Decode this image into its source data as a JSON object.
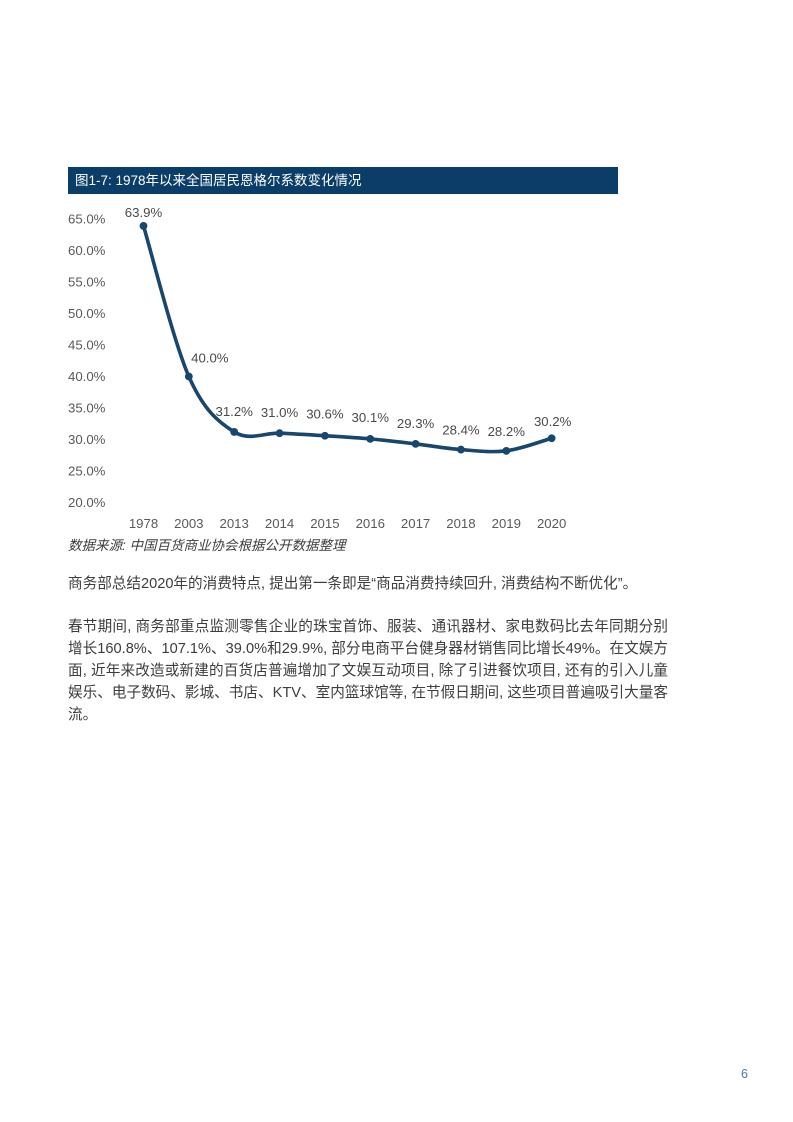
{
  "figure": {
    "title": "图1-7: 1978年以来全国居民恩格尔系数变化情况",
    "source": "数据来源: 中国百货商业协会根据公开数据整理"
  },
  "chart_data": {
    "type": "line",
    "title": "图1-7: 1978年以来全国居民恩格尔系数变化情况",
    "categories": [
      "1978",
      "2003",
      "2013",
      "2014",
      "2015",
      "2016",
      "2017",
      "2018",
      "2019",
      "2020"
    ],
    "values": [
      63.9,
      40.0,
      31.2,
      31.0,
      30.6,
      30.1,
      29.3,
      28.4,
      28.2,
      30.2
    ],
    "point_labels": [
      "63.9%",
      "40.0%",
      "31.2%",
      "31.0%",
      "30.6%",
      "30.1%",
      "29.3%",
      "28.4%",
      "28.2%",
      "30.2%"
    ],
    "y_ticks": [
      "65.0%",
      "60.0%",
      "55.0%",
      "50.0%",
      "45.0%",
      "40.0%",
      "35.0%",
      "30.0%",
      "25.0%",
      "20.0%"
    ],
    "y_tick_values": [
      65,
      60,
      55,
      50,
      45,
      40,
      35,
      30,
      25,
      20
    ],
    "ylim": [
      20,
      65
    ],
    "xlabel": "",
    "ylabel": "",
    "grid": false,
    "legend": "none",
    "line_color": "#17466e",
    "marker_color": "#17466e",
    "tick_label_color": "#595959",
    "data_label_color": "#4a4a4a"
  },
  "body": {
    "paragraph1": "商务部总结2020年的消费特点, 提出第一条即是“商品消费持续回升, 消费结构不断优化”。",
    "paragraph2": "春节期间, 商务部重点监测零售企业的珠宝首饰、服装、通讯器材、家电数码比去年同期分别增长160.8%、107.1%、39.0%和29.9%, 部分电商平台健身器材销售同比增长49%。在文娱方面, 近年来改造或新建的百货店普遍增加了文娱互动项目, 除了引进餐饮项目, 还有的引入儿童娱乐、电子数码、影城、书店、KTV、室内篮球馆等, 在节假日期间, 这些项目普遍吸引大量客流。"
  },
  "page": {
    "number": "6"
  }
}
